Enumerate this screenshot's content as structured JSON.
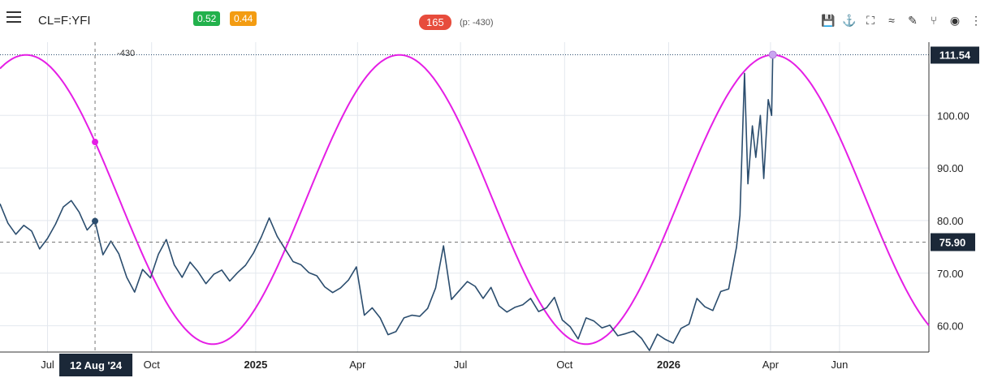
{
  "header": {
    "menu_icon": "hamburger-menu-icon",
    "symbol": "CL=F:YFI",
    "badge_green": "0.52",
    "badge_orange": "0.44",
    "cycle_badge": "165",
    "phase_text": "(p: -430)",
    "tools": [
      {
        "name": "save-icon",
        "glyph": "💾"
      },
      {
        "name": "pin-icon",
        "glyph": "⚓"
      },
      {
        "name": "fullscreen-icon",
        "glyph": "⛶"
      },
      {
        "name": "trend-icon",
        "glyph": "≈"
      },
      {
        "name": "draw-icon",
        "glyph": "✎"
      },
      {
        "name": "fork-icon",
        "glyph": "⑂"
      },
      {
        "name": "eye-icon",
        "glyph": "◉"
      },
      {
        "name": "more-vertical-icon",
        "glyph": "⋮"
      }
    ]
  },
  "chart_data": {
    "type": "line",
    "colors": {
      "price": "#2b4d6e",
      "cycle": "#e51ee5",
      "price_label": "#1b2838"
    },
    "x_range": [
      "2024-05-20",
      "2026-08-19"
    ],
    "ylim": [
      55,
      113
    ],
    "y_ticks": [
      60,
      70,
      80,
      90,
      100
    ],
    "y_tick_labels": [
      "60.00",
      "70.00",
      "80.00",
      "90.00",
      "100.00"
    ],
    "x_ticks": [
      {
        "date": "2024-07-01",
        "label": "Jul",
        "bold": false
      },
      {
        "date": "2024-10-01",
        "label": "Oct",
        "bold": false
      },
      {
        "date": "2025-01-01",
        "label": "2025",
        "bold": true
      },
      {
        "date": "2025-04-01",
        "label": "Apr",
        "bold": false
      },
      {
        "date": "2025-07-01",
        "label": "Jul",
        "bold": false
      },
      {
        "date": "2025-10-01",
        "label": "Oct",
        "bold": false
      },
      {
        "date": "2026-01-01",
        "label": "2026",
        "bold": true
      },
      {
        "date": "2026-04-01",
        "label": "Apr",
        "bold": false
      },
      {
        "date": "2026-06-01",
        "label": "Jun",
        "bold": false
      }
    ],
    "grid": true,
    "crosshair": {
      "date": "2024-08-12",
      "date_label": "12 Aug '24",
      "price": 75.9,
      "price_label": "75.90",
      "top_label": "-430"
    },
    "last_price": {
      "value": 111.54,
      "label": "111.54"
    },
    "series": [
      {
        "kind": "price",
        "points": [
          [
            "2024-05-20",
            83.2
          ],
          [
            "2024-05-27",
            79.5
          ],
          [
            "2024-06-03",
            77.4
          ],
          [
            "2024-06-10",
            79.1
          ],
          [
            "2024-06-17",
            78.0
          ],
          [
            "2024-06-24",
            74.6
          ],
          [
            "2024-07-01",
            76.6
          ],
          [
            "2024-07-08",
            79.3
          ],
          [
            "2024-07-15",
            82.6
          ],
          [
            "2024-07-22",
            83.8
          ],
          [
            "2024-07-29",
            81.6
          ],
          [
            "2024-08-05",
            78.2
          ],
          [
            "2024-08-12",
            79.9
          ],
          [
            "2024-08-19",
            73.5
          ],
          [
            "2024-08-26",
            76.1
          ],
          [
            "2024-09-02",
            73.7
          ],
          [
            "2024-09-09",
            69.2
          ],
          [
            "2024-09-16",
            66.4
          ],
          [
            "2024-09-23",
            70.7
          ],
          [
            "2024-09-30",
            69.1
          ],
          [
            "2024-10-07",
            73.6
          ],
          [
            "2024-10-14",
            76.4
          ],
          [
            "2024-10-21",
            71.6
          ],
          [
            "2024-10-28",
            69.2
          ],
          [
            "2024-11-04",
            72.1
          ],
          [
            "2024-11-11",
            70.3
          ],
          [
            "2024-11-18",
            68.0
          ],
          [
            "2024-11-25",
            69.8
          ],
          [
            "2024-12-02",
            70.6
          ],
          [
            "2024-12-09",
            68.5
          ],
          [
            "2024-12-16",
            70.1
          ],
          [
            "2024-12-23",
            71.5
          ],
          [
            "2024-12-30",
            73.8
          ],
          [
            "2025-01-06",
            76.9
          ],
          [
            "2025-01-13",
            80.5
          ],
          [
            "2025-01-20",
            77.0
          ],
          [
            "2025-01-27",
            74.6
          ],
          [
            "2025-02-03",
            72.2
          ],
          [
            "2025-02-10",
            71.6
          ],
          [
            "2025-02-17",
            70.1
          ],
          [
            "2025-02-24",
            69.5
          ],
          [
            "2025-03-03",
            67.4
          ],
          [
            "2025-03-10",
            66.3
          ],
          [
            "2025-03-17",
            67.2
          ],
          [
            "2025-03-24",
            68.7
          ],
          [
            "2025-03-31",
            71.2
          ],
          [
            "2025-04-07",
            62.0
          ],
          [
            "2025-04-14",
            63.4
          ],
          [
            "2025-04-21",
            61.5
          ],
          [
            "2025-04-28",
            58.3
          ],
          [
            "2025-05-05",
            58.9
          ],
          [
            "2025-05-12",
            61.5
          ],
          [
            "2025-05-19",
            62.0
          ],
          [
            "2025-05-26",
            61.8
          ],
          [
            "2025-06-02",
            63.3
          ],
          [
            "2025-06-09",
            67.2
          ],
          [
            "2025-06-16",
            75.2
          ],
          [
            "2025-06-23",
            65.0
          ],
          [
            "2025-06-30",
            66.7
          ],
          [
            "2025-07-07",
            68.4
          ],
          [
            "2025-07-14",
            67.5
          ],
          [
            "2025-07-21",
            65.2
          ],
          [
            "2025-07-28",
            67.3
          ],
          [
            "2025-08-04",
            63.8
          ],
          [
            "2025-08-11",
            62.6
          ],
          [
            "2025-08-18",
            63.5
          ],
          [
            "2025-08-25",
            64.0
          ],
          [
            "2025-09-01",
            65.2
          ],
          [
            "2025-09-08",
            62.7
          ],
          [
            "2025-09-15",
            63.4
          ],
          [
            "2025-09-22",
            65.4
          ],
          [
            "2025-09-29",
            61.1
          ],
          [
            "2025-10-06",
            59.8
          ],
          [
            "2025-10-13",
            57.5
          ],
          [
            "2025-10-20",
            61.5
          ],
          [
            "2025-10-27",
            60.9
          ],
          [
            "2025-11-03",
            59.6
          ],
          [
            "2025-11-10",
            60.1
          ],
          [
            "2025-11-17",
            58.1
          ],
          [
            "2025-11-24",
            58.5
          ],
          [
            "2025-12-01",
            59.0
          ],
          [
            "2025-12-08",
            57.6
          ],
          [
            "2025-12-15",
            55.3
          ],
          [
            "2025-12-22",
            58.4
          ],
          [
            "2025-12-29",
            57.4
          ],
          [
            "2026-01-05",
            56.7
          ],
          [
            "2026-01-12",
            59.5
          ],
          [
            "2026-01-19",
            60.3
          ],
          [
            "2026-01-26",
            65.2
          ],
          [
            "2026-02-02",
            63.6
          ],
          [
            "2026-02-09",
            62.9
          ],
          [
            "2026-02-16",
            66.5
          ],
          [
            "2026-02-23",
            67.0
          ],
          [
            "2026-03-02",
            75.0
          ],
          [
            "2026-03-05",
            81.0
          ],
          [
            "2026-03-09",
            108.0
          ],
          [
            "2026-03-12",
            87.0
          ],
          [
            "2026-03-16",
            98.0
          ],
          [
            "2026-03-19",
            92.0
          ],
          [
            "2026-03-23",
            100.0
          ],
          [
            "2026-03-26",
            88.0
          ],
          [
            "2026-03-30",
            103.0
          ],
          [
            "2026-04-02",
            100.0
          ],
          [
            "2026-04-03",
            111.54
          ]
        ]
      },
      {
        "kind": "cycle",
        "amplitude": 27.5,
        "center": 84,
        "period_days": 330,
        "peak_date": "2026-04-03"
      }
    ]
  }
}
